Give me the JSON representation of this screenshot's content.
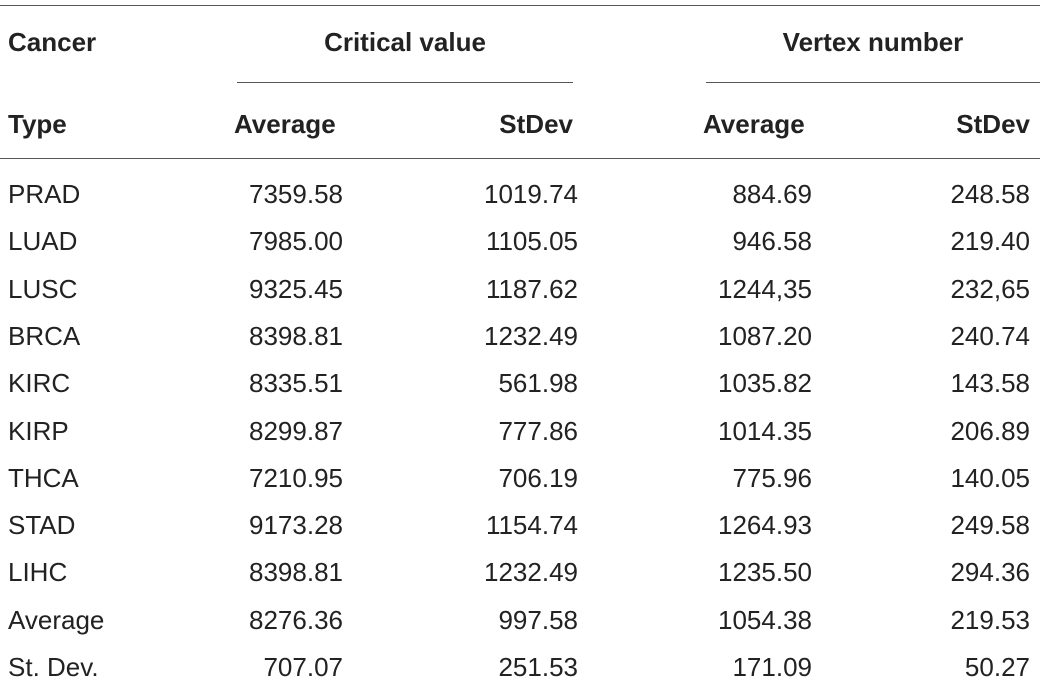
{
  "header": {
    "cancer_label": "Cancer",
    "type_label": "Type",
    "group1": "Critical value",
    "group2": "Vertex number",
    "sub_average_1": "Average",
    "sub_stdev_1": "StDev",
    "sub_average_2": "Average",
    "sub_stdev_2": "StDev"
  },
  "rows": [
    {
      "type": "PRAD",
      "cv_avg": "7359.58",
      "cv_sd": "1019.74",
      "vn_avg": "884.69",
      "vn_sd": "248.58"
    },
    {
      "type": "LUAD",
      "cv_avg": "7985.00",
      "cv_sd": "1105.05",
      "vn_avg": "946.58",
      "vn_sd": "219.40"
    },
    {
      "type": "LUSC",
      "cv_avg": "9325.45",
      "cv_sd": "1187.62",
      "vn_avg": "1244,35",
      "vn_sd": "232,65"
    },
    {
      "type": "BRCA",
      "cv_avg": "8398.81",
      "cv_sd": "1232.49",
      "vn_avg": "1087.20",
      "vn_sd": "240.74"
    },
    {
      "type": "KIRC",
      "cv_avg": "8335.51",
      "cv_sd": "561.98",
      "vn_avg": "1035.82",
      "vn_sd": "143.58"
    },
    {
      "type": "KIRP",
      "cv_avg": "8299.87",
      "cv_sd": "777.86",
      "vn_avg": "1014.35",
      "vn_sd": "206.89"
    },
    {
      "type": "THCA",
      "cv_avg": "7210.95",
      "cv_sd": "706.19",
      "vn_avg": "775.96",
      "vn_sd": "140.05"
    },
    {
      "type": "STAD",
      "cv_avg": "9173.28",
      "cv_sd": "1154.74",
      "vn_avg": "1264.93",
      "vn_sd": "249.58"
    },
    {
      "type": "LIHC",
      "cv_avg": "8398.81",
      "cv_sd": "1232.49",
      "vn_avg": "1235.50",
      "vn_sd": "294.36"
    },
    {
      "type": "Average",
      "cv_avg": "8276.36",
      "cv_sd": "997.58",
      "vn_avg": "1054.38",
      "vn_sd": "219.53"
    },
    {
      "type": "St. Dev.",
      "cv_avg": "707.07",
      "cv_sd": "251.53",
      "vn_avg": "171.09",
      "vn_sd": "50.27"
    }
  ]
}
